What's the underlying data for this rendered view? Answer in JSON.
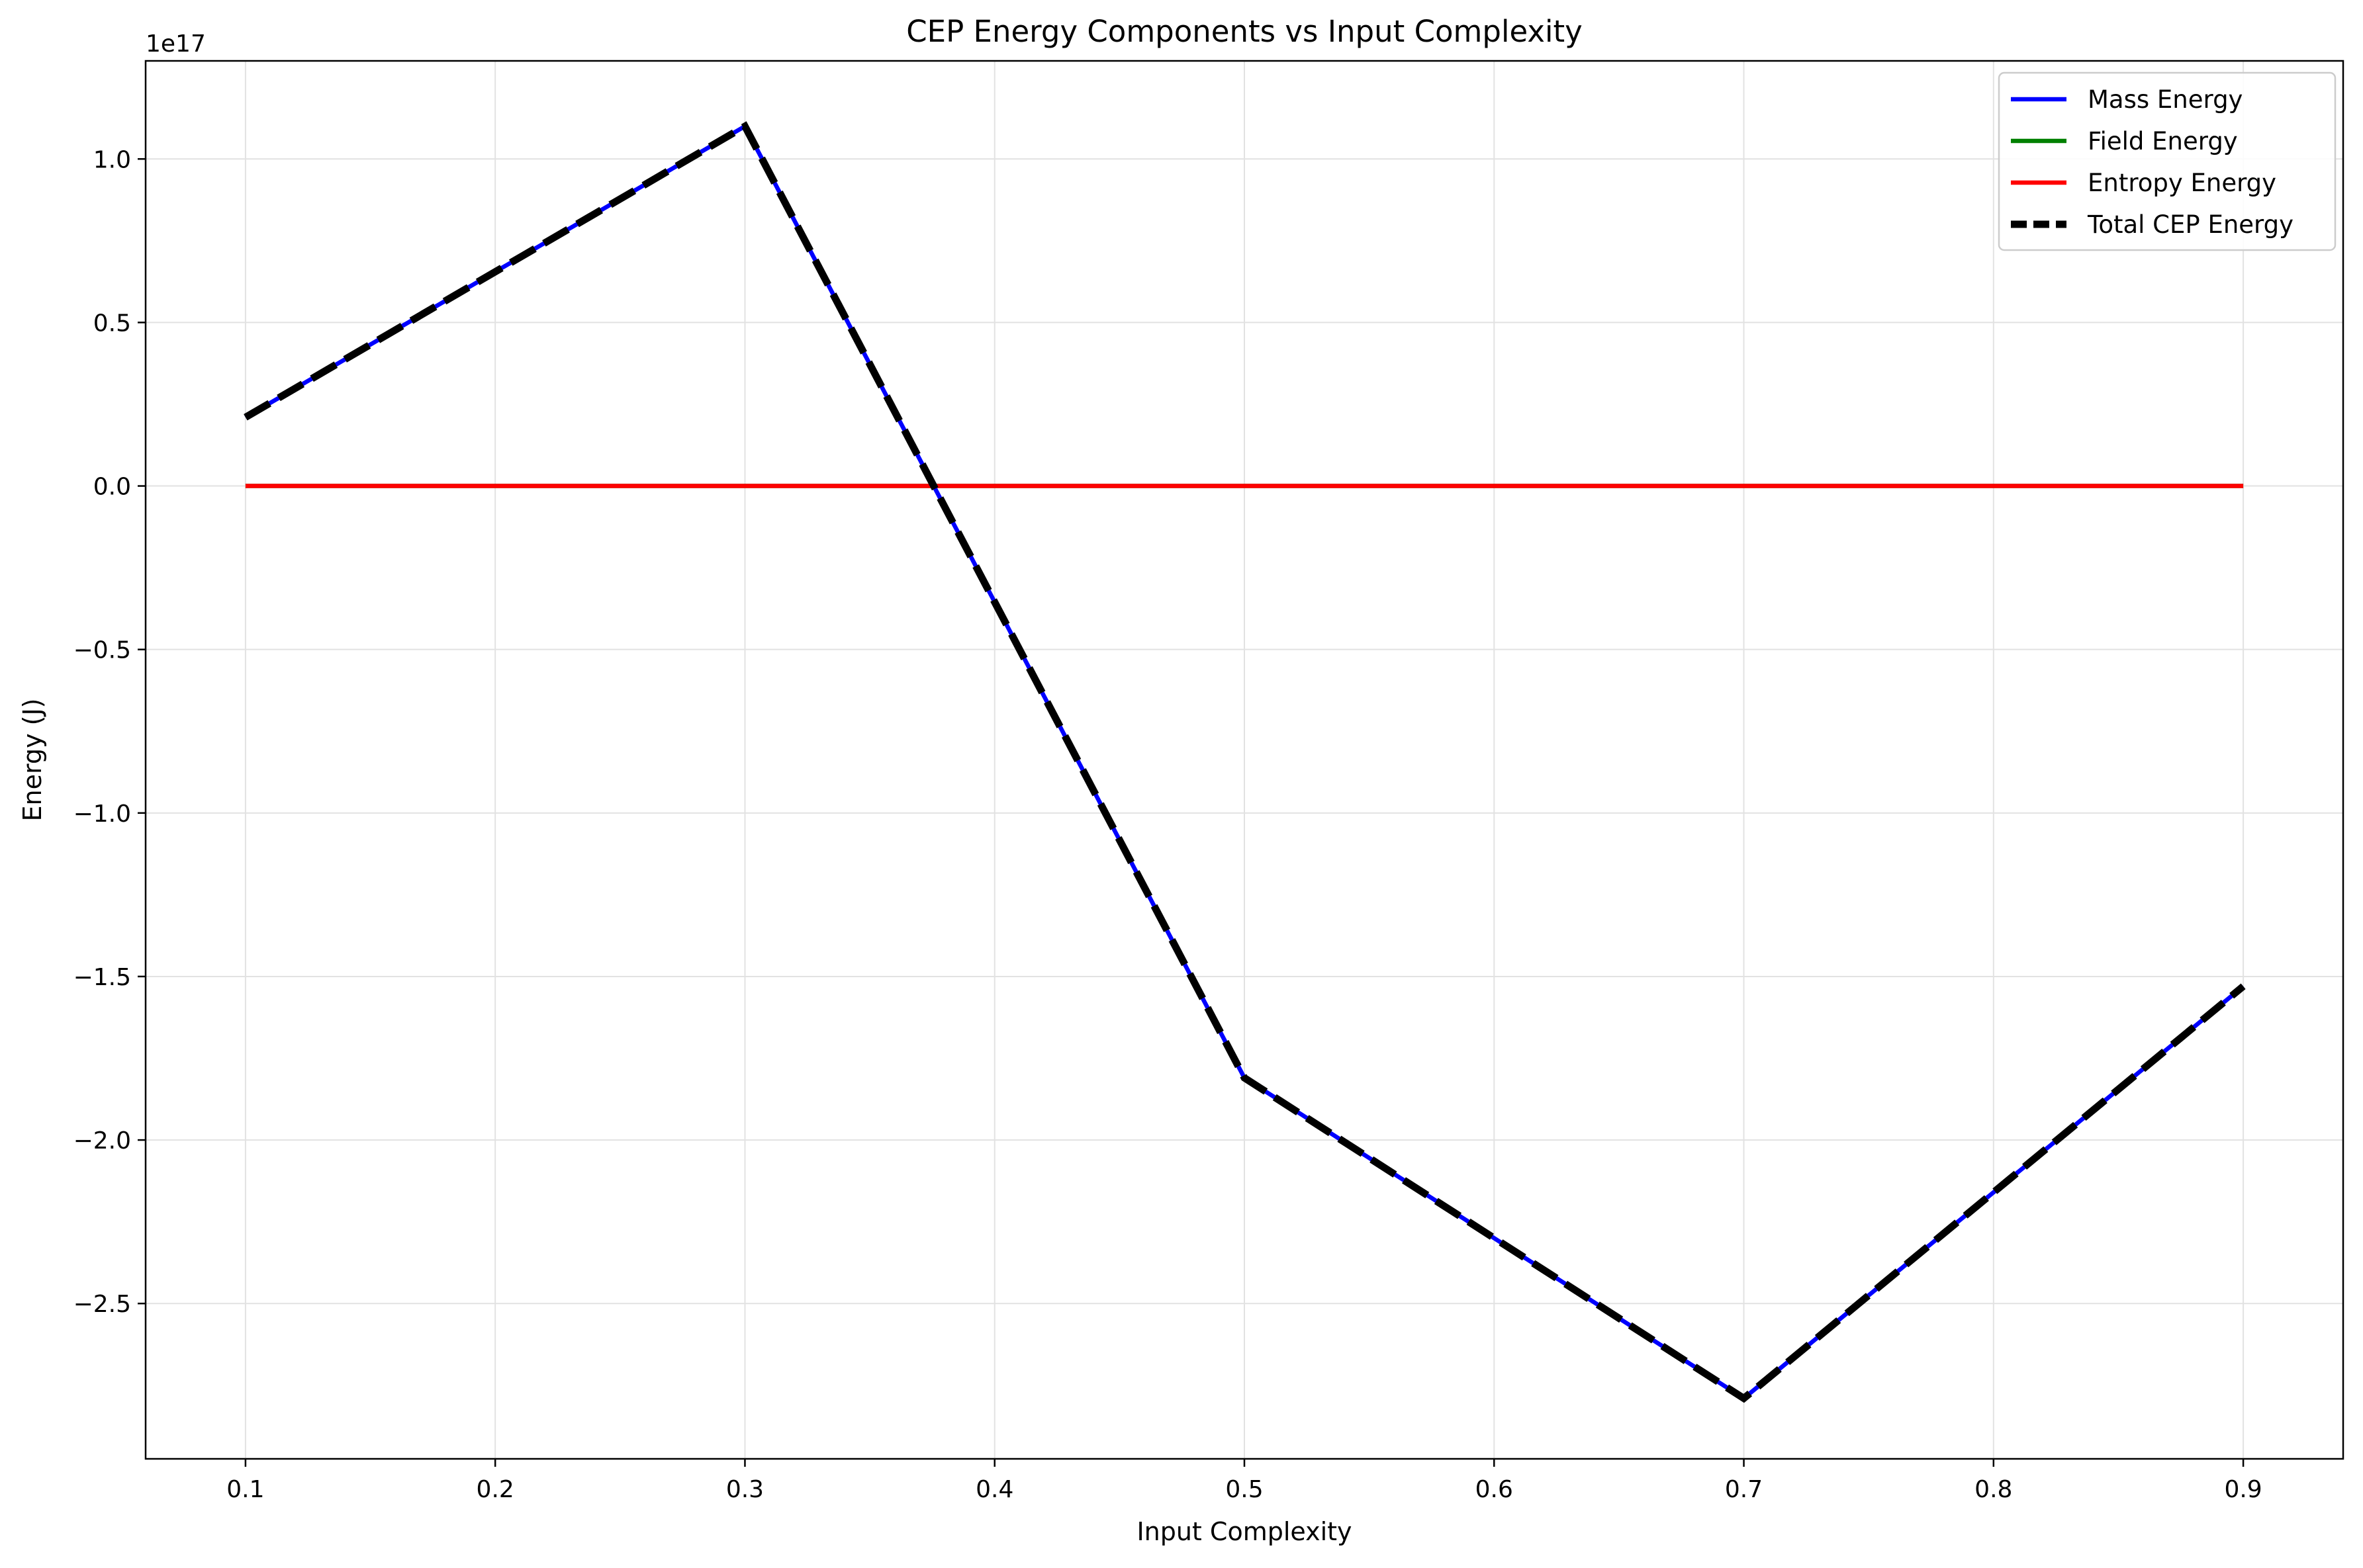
{
  "chart_data": {
    "type": "line",
    "title": "CEP Energy Components vs Input Complexity",
    "xlabel": "Input Complexity",
    "ylabel": "Energy (J)",
    "y_offset_label": "1e17",
    "y_scale_factor": 1e+17,
    "xlim": [
      0.06,
      0.94
    ],
    "ylim": [
      -2.975,
      1.3
    ],
    "x_ticks": [
      0.1,
      0.2,
      0.3,
      0.4,
      0.5,
      0.6,
      0.7,
      0.8,
      0.9
    ],
    "x_tick_labels": [
      "0.1",
      "0.2",
      "0.3",
      "0.4",
      "0.5",
      "0.6",
      "0.7",
      "0.8",
      "0.9"
    ],
    "y_ticks": [
      1.0,
      0.5,
      0.0,
      -0.5,
      -1.0,
      -1.5,
      -2.0,
      -2.5
    ],
    "y_tick_labels": [
      "1.0",
      "0.5",
      "0.0",
      "−0.5",
      "−1.0",
      "−1.5",
      "−2.0",
      "−2.5"
    ],
    "grid": true,
    "legend_position": "top-right",
    "x": [
      0.1,
      0.3,
      0.5,
      0.7,
      0.9
    ],
    "series": [
      {
        "name": "Mass Energy",
        "color": "#0000ff",
        "style": "solid",
        "values": [
          0.21,
          1.1,
          -1.81,
          -2.79,
          -1.53
        ]
      },
      {
        "name": "Field Energy",
        "color": "#008000",
        "style": "solid",
        "values": [
          0.0,
          0.0,
          0.0,
          0.0,
          0.0
        ]
      },
      {
        "name": "Entropy Energy",
        "color": "#ff0000",
        "style": "solid",
        "values": [
          0.0,
          0.0,
          0.0,
          0.0,
          0.0
        ]
      },
      {
        "name": "Total CEP Energy",
        "color": "#000000",
        "style": "dashed",
        "values": [
          0.21,
          1.1,
          -1.81,
          -2.79,
          -1.53
        ]
      }
    ]
  }
}
